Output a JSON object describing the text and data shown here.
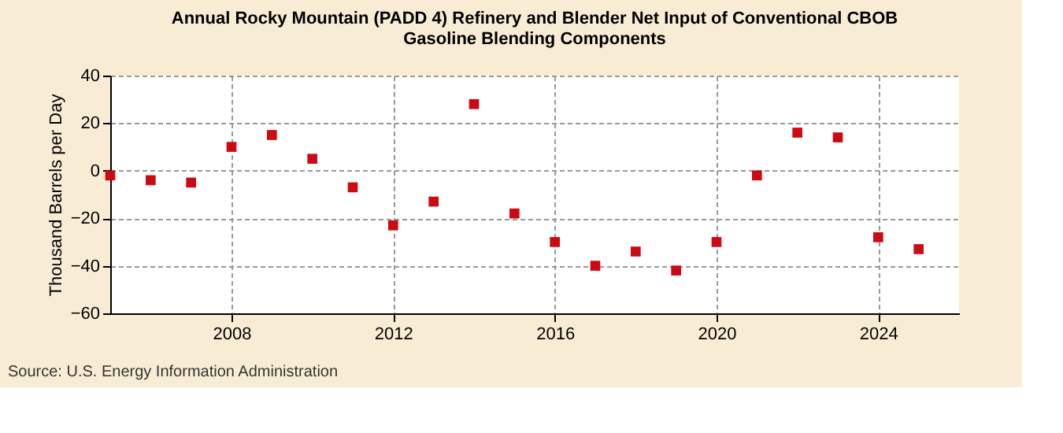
{
  "chart_data": {
    "type": "scatter",
    "title": [
      "Annual Rocky Mountain (PADD 4) Refinery and Blender Net Input of Conventional CBOB",
      "Gasoline Blending Components"
    ],
    "ylabel": "Thousand Barrels per Day",
    "x": [
      2005,
      2006,
      2007,
      2008,
      2009,
      2010,
      2011,
      2012,
      2013,
      2014,
      2015,
      2016,
      2017,
      2018,
      2019,
      2020,
      2021,
      2022,
      2023,
      2024,
      2025
    ],
    "series": [
      {
        "color": "#cc0a14",
        "values": [
          -2,
          -4,
          -5,
          10,
          15,
          5,
          -7,
          -23,
          -13,
          28,
          -18,
          -30,
          -40,
          -34,
          -42,
          -30,
          -2,
          16,
          14,
          -28,
          -33
        ]
      }
    ],
    "xlim": [
      2005,
      2026
    ],
    "xticks": [
      2008,
      2012,
      2016,
      2020,
      2024
    ],
    "ylim": [
      -60,
      40
    ],
    "yticks": [
      -60,
      -40,
      -20,
      0,
      20,
      40
    ],
    "grid": true,
    "marker": "square",
    "annotations": [
      "Source: U.S. Energy Information Administration"
    ]
  }
}
